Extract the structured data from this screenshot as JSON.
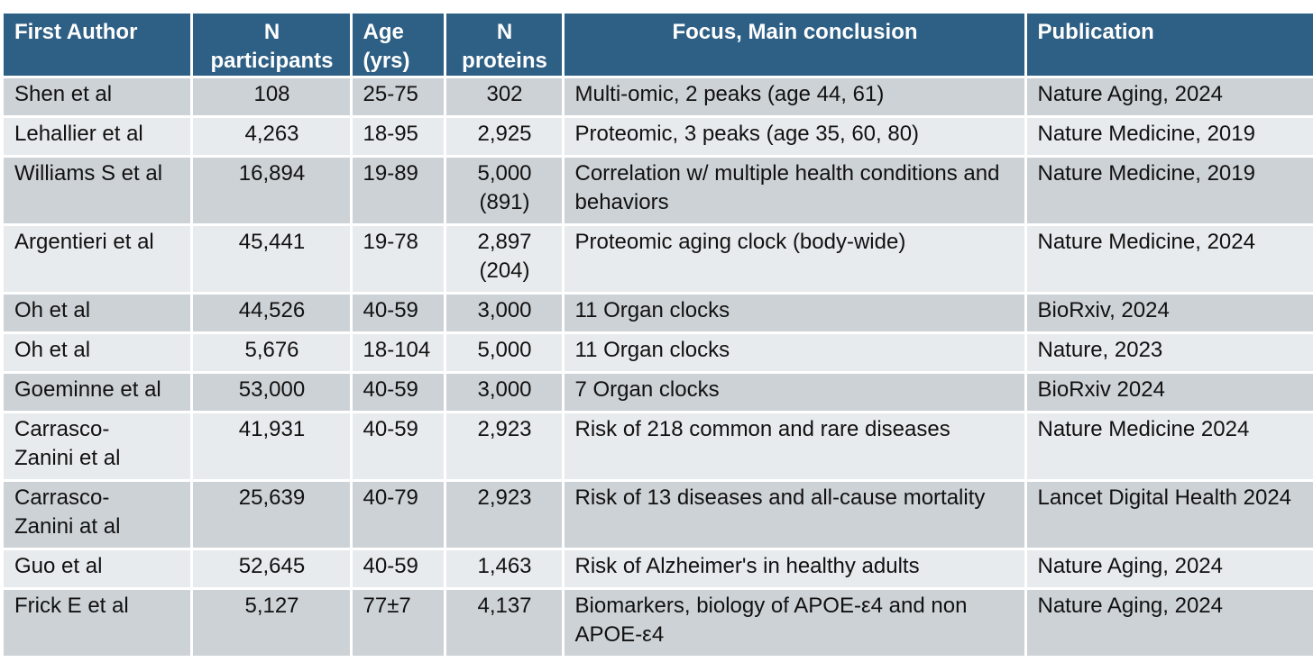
{
  "headers": [
    "First Author",
    "N participants",
    "Age (yrs)",
    "N proteins",
    "Focus, Main conclusion",
    "Publication"
  ],
  "rows": [
    {
      "author": "Shen et al",
      "participants": "108",
      "age": "25-75",
      "proteins": "302",
      "focus": "Multi-omic, 2 peaks (age 44, 61)",
      "publication": "Nature Aging, 2024"
    },
    {
      "author": "Lehallier et al",
      "participants": "4,263",
      "age": "18-95",
      "proteins": "2,925",
      "focus": "Proteomic, 3 peaks (age 35,  60, 80)",
      "publication": "Nature Medicine, 2019"
    },
    {
      "author": "Williams  S et al",
      "participants": "16,894",
      "age": "19-89",
      "proteins": "5,000\n(891)",
      "focus": "Correlation w/ multiple health conditions and behaviors",
      "publication": "Nature Medicine, 2019"
    },
    {
      "author": "Argentieri et al",
      "participants": "45,441",
      "age": "19-78",
      "proteins": "2,897\n(204)",
      "focus": "Proteomic aging clock (body-wide)",
      "publication": "Nature Medicine, 2024"
    },
    {
      "author": "Oh et al",
      "participants": "44,526",
      "age": "40-59",
      "proteins": "3,000",
      "focus": "11 Organ clocks",
      "publication": "BioRxiv, 2024"
    },
    {
      "author": "Oh et al",
      "participants": "5,676",
      "age": "18-104",
      "proteins": "5,000",
      "focus": "11 Organ clocks",
      "publication": "Nature, 2023"
    },
    {
      "author": "Goeminne  et al",
      "participants": "53,000",
      "age": "40-59",
      "proteins": "3,000",
      "focus": "7 Organ clocks",
      "publication": "BioRxiv 2024"
    },
    {
      "author": "Carrasco-\nZanini et al",
      "participants": "41,931",
      "age": "40-59",
      "proteins": "2,923",
      "focus": "Risk of 218 common and rare diseases",
      "publication": "Nature Medicine 2024"
    },
    {
      "author": "Carrasco-\nZanini at al",
      "participants": "25,639",
      "age": "40-79",
      "proteins": "2,923",
      "focus": "Risk of 13 diseases and all-cause mortality",
      "publication": "Lancet Digital Health 2024"
    },
    {
      "author": "Guo et al",
      "participants": "52,645",
      "age": "40-59",
      "proteins": "1,463",
      "focus": "Risk of Alzheimer's in healthy adults",
      "publication": "Nature Aging, 2024"
    },
    {
      "author": "Frick E et al",
      "participants": "5,127",
      "age": "77±7",
      "proteins": "4,137",
      "focus": "Biomarkers, biology of APOE-ε4 and non APOE-ε4",
      "publication": "Nature Aging, 2024"
    }
  ],
  "colors": {
    "header_bg": "#2e5f84",
    "header_text": "#ffffff",
    "row_dark": "#cdd2d7",
    "row_light": "#e8ebed"
  }
}
